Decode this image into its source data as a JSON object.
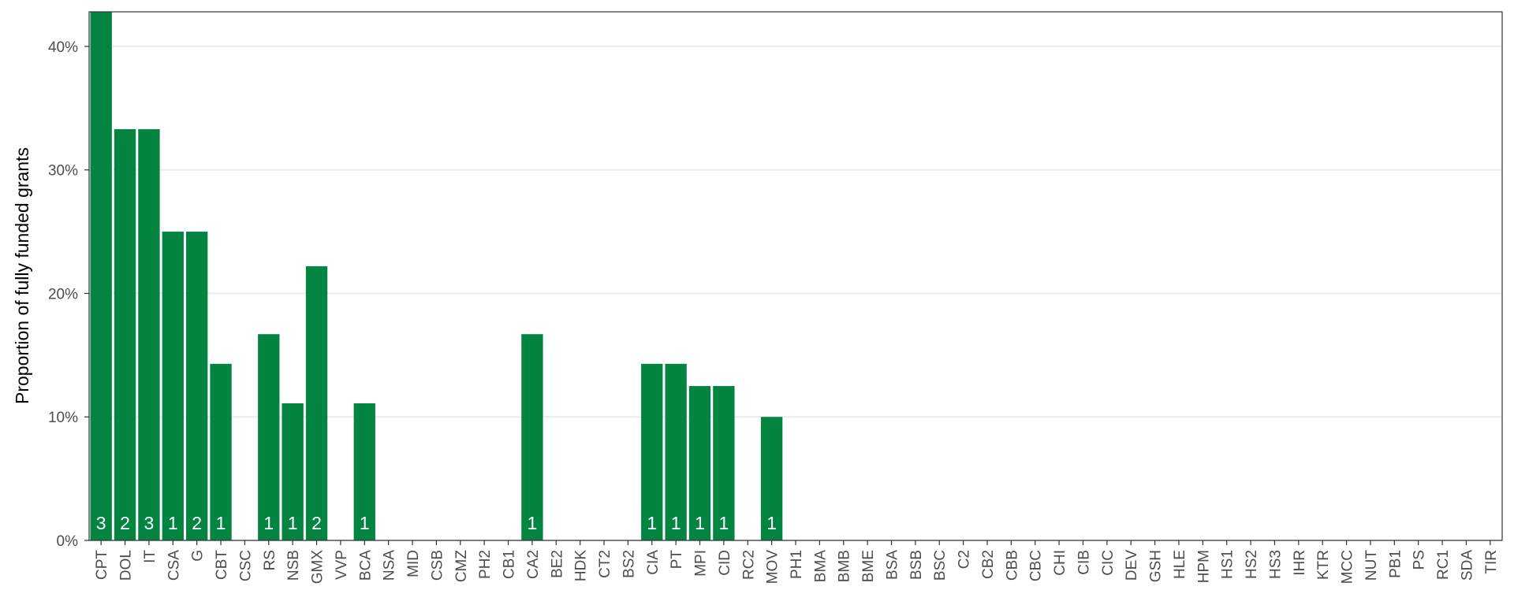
{
  "chart_data": {
    "type": "bar",
    "y_label": "Proportion of fully funded grants",
    "categories": [
      "CPT",
      "DOL",
      "IT",
      "CSA",
      "G",
      "CBT",
      "CSC",
      "RS",
      "NSB",
      "GMX",
      "VVP",
      "BCA",
      "NSA",
      "MID",
      "CSB",
      "CMZ",
      "PH2",
      "CB1",
      "CA2",
      "BE2",
      "HDK",
      "CT2",
      "BS2",
      "CIA",
      "PT",
      "MPI",
      "CID",
      "RC2",
      "MOV",
      "PH1",
      "BMA",
      "BMB",
      "BME",
      "BSA",
      "BSB",
      "BSC",
      "C2",
      "CB2",
      "CBB",
      "CBC",
      "CHI",
      "CIB",
      "CIC",
      "DEV",
      "GSH",
      "HLE",
      "HPM",
      "HS1",
      "HS2",
      "HS3",
      "IHR",
      "KTR",
      "MCC",
      "NUT",
      "PB1",
      "PS",
      "RC1",
      "SDA",
      "TIR"
    ],
    "values": [
      42.9,
      33.3,
      33.3,
      25,
      25,
      14.3,
      0,
      16.7,
      11.1,
      22.2,
      0,
      11.1,
      0,
      0,
      0,
      0,
      0,
      0,
      16.7,
      0,
      0,
      0,
      0,
      14.3,
      14.3,
      12.5,
      12.5,
      0,
      10,
      0,
      0,
      0,
      0,
      0,
      0,
      0,
      0,
      0,
      0,
      0,
      0,
      0,
      0,
      0,
      0,
      0,
      0,
      0,
      0,
      0,
      0,
      0,
      0,
      0,
      0,
      0,
      0,
      0,
      0
    ],
    "counts": [
      3,
      2,
      3,
      1,
      2,
      1,
      null,
      1,
      1,
      2,
      null,
      1,
      null,
      null,
      null,
      null,
      null,
      null,
      1,
      null,
      null,
      null,
      null,
      1,
      1,
      1,
      1,
      null,
      1,
      null,
      null,
      null,
      null,
      null,
      null,
      null,
      null,
      null,
      null,
      null,
      null,
      null,
      null,
      null,
      null,
      null,
      null,
      null,
      null,
      null,
      null,
      null,
      null,
      null,
      null,
      null,
      null,
      null,
      null
    ],
    "color": "#038541",
    "ylim": [
      0,
      42.8
    ],
    "yticks": [
      {
        "value": 0,
        "label": "0%"
      },
      {
        "value": 10,
        "label": "10%"
      },
      {
        "value": 20,
        "label": "20%"
      },
      {
        "value": 30,
        "label": "30%"
      },
      {
        "value": 40,
        "label": "40%"
      }
    ],
    "grid": true
  }
}
